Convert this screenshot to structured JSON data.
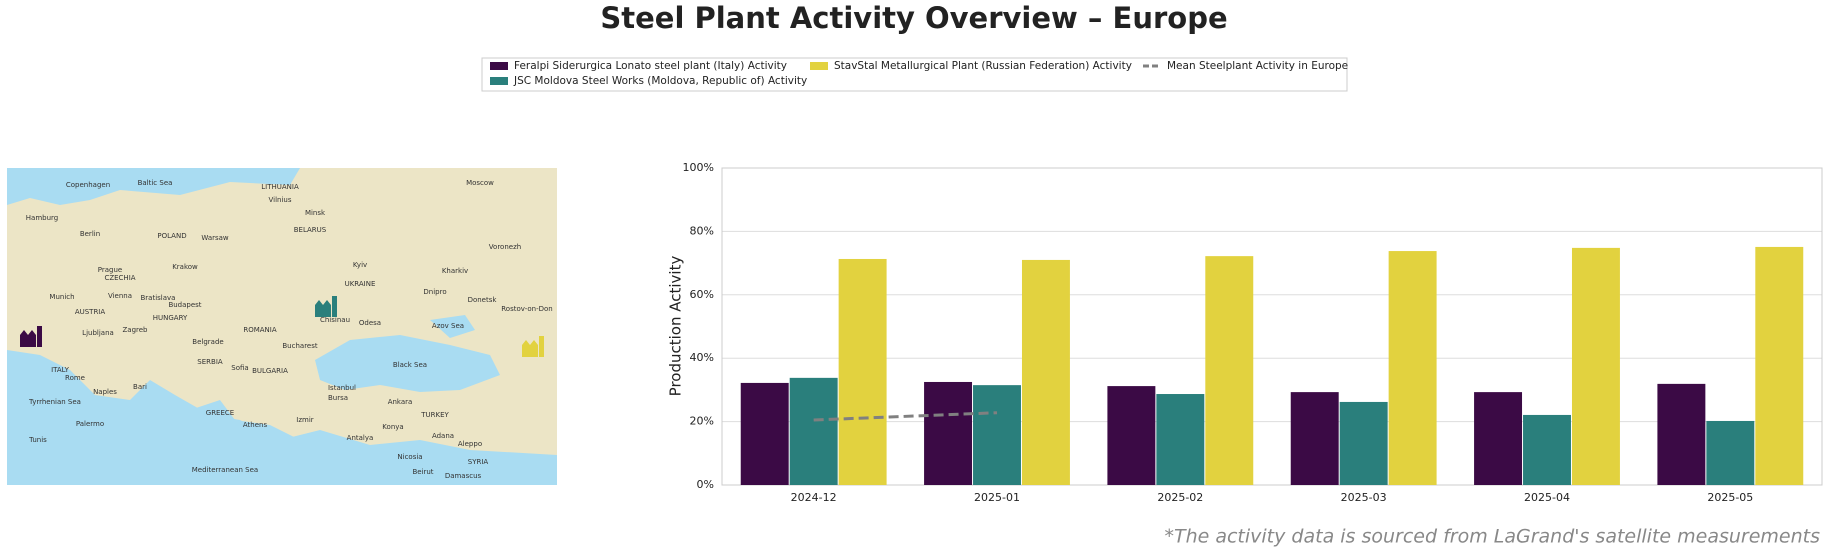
{
  "chart_data": {
    "type": "bar",
    "title": "Steel Plant Activity Overview – Europe",
    "ylabel": "Production Activity",
    "footnote": "*The activity data is sourced from LaGrand's satellite measurements",
    "categories": [
      "2024-12",
      "2025-01",
      "2025-02",
      "2025-03",
      "2025-04",
      "2025-05"
    ],
    "series": [
      {
        "name": "Feralpi Siderurgica Lonato steel plant (Italy) Activity",
        "color": "#3b0a45",
        "values": [
          32.2,
          32.5,
          31.2,
          29.3,
          29.3,
          31.9
        ]
      },
      {
        "name": "JSC Moldova Steel Works (Moldova, Republic of) Activity",
        "color": "#2a7f7c",
        "values": [
          33.8,
          31.5,
          28.7,
          26.2,
          22.1,
          20.2
        ]
      },
      {
        "name": "StavStal Metallurgical Plant (Russian Federation) Activity",
        "color": "#e2d23f",
        "values": [
          71.3,
          71.0,
          72.2,
          73.8,
          74.8,
          75.1
        ]
      },
      {
        "type": "line",
        "name": "Mean Steelplant Activity in Europe",
        "color": "#808080",
        "dashed": true,
        "values": [
          20.5,
          22.8,
          null,
          null,
          null,
          null
        ]
      }
    ],
    "ylim": [
      0,
      100
    ],
    "yticks": [
      {
        "value": 0,
        "label": "0%"
      },
      {
        "value": 20,
        "label": "20%"
      },
      {
        "value": 40,
        "label": "40%"
      },
      {
        "value": 60,
        "label": "60%"
      },
      {
        "value": 80,
        "label": "80%"
      },
      {
        "value": 100,
        "label": "100%"
      }
    ],
    "grid": true,
    "legend": "top",
    "map_labels": [
      "Copenhagen",
      "Baltic Sea",
      "LITHUANIA",
      "Moscow",
      "Hamburg",
      "Berlin",
      "POLAND",
      "Warsaw",
      "Vilnius",
      "Minsk",
      "BELARUS",
      "Voronezh",
      "Prague",
      "CZECHIA",
      "Krakow",
      "Kyiv",
      "UKRAINE",
      "Kharkiv",
      "Vienna",
      "Munich",
      "Bratislava",
      "Budapest",
      "HUNGARY",
      "Dnipro",
      "Donetsk",
      "Rostov-on-Don",
      "AUSTRIA",
      "ROMANIA",
      "Odesa",
      "Chisinau",
      "Azov Sea",
      "Zagreb",
      "Ljubljana",
      "Belgrade",
      "Bucharest",
      "SERBIA",
      "Sofia",
      "BULGARIA",
      "ITALY",
      "Rome",
      "Black Sea",
      "Naples",
      "Bari",
      "Istanbul",
      "Bursa",
      "Ankara",
      "TURKEY",
      "GREECE",
      "Athens",
      "Izmir",
      "Konya",
      "Adana",
      "Aleppo",
      "Antalya",
      "Tunis",
      "Palermo",
      "Mediterranean Sea",
      "Nicosia",
      "SYRIA",
      "Beirut",
      "Damascus",
      "Tyrrhenian Sea"
    ]
  }
}
